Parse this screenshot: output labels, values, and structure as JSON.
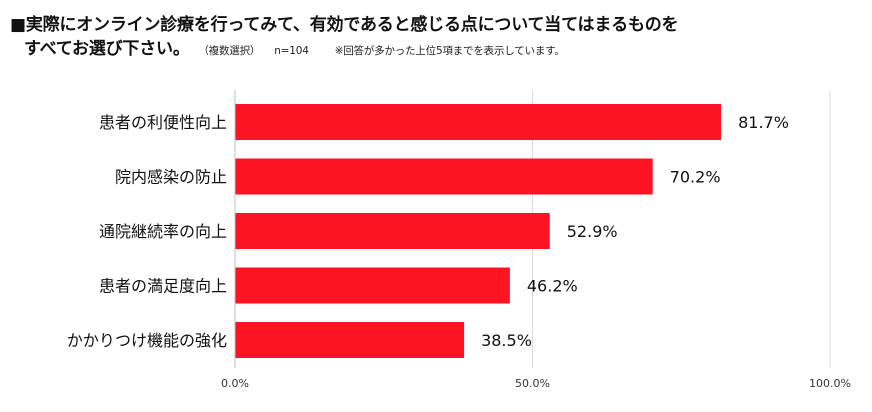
{
  "title": {
    "line1": "■実際にオンライン診療を行ってみて、有効であると感じる点について当てはまるものを",
    "line2": "すべてお選び下さい。",
    "note_multi": "（複数選択）",
    "note_n": "n=104",
    "note_top5": "※回答が多かった上位5項までを表示しています。"
  },
  "colors": {
    "bar": "#fc1424",
    "grid": "#d9d9d9"
  },
  "chart_data": {
    "type": "bar",
    "orientation": "horizontal",
    "categories": [
      "患者の利便性向上",
      "院内感染の防止",
      "通院継続率の向上",
      "患者の満足度向上",
      "かかりつけ機能の強化"
    ],
    "values": [
      81.7,
      70.2,
      52.9,
      46.2,
      38.5
    ],
    "value_labels": [
      "81.7%",
      "70.2%",
      "52.9%",
      "46.2%",
      "38.5%"
    ],
    "xlim": [
      0,
      100
    ],
    "x_ticks": [
      0,
      50,
      100
    ],
    "x_tick_labels": [
      "0.0%",
      "50.0%",
      "100.0%"
    ],
    "grid": true
  }
}
